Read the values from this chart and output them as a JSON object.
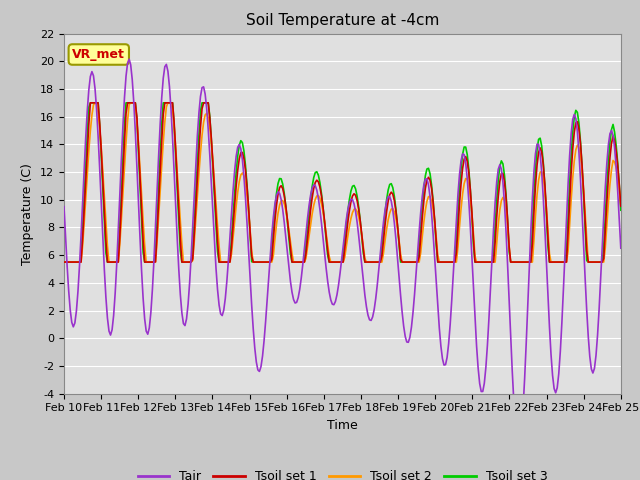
{
  "title": "Soil Temperature at -4cm",
  "xlabel": "Time",
  "ylabel": "Temperature (C)",
  "ylim": [
    -4,
    22
  ],
  "yticks": [
    -4,
    -2,
    0,
    2,
    4,
    6,
    8,
    10,
    12,
    14,
    16,
    18,
    20,
    22
  ],
  "date_labels": [
    "Feb 10",
    "Feb 11",
    "Feb 12",
    "Feb 13",
    "Feb 14",
    "Feb 15",
    "Feb 16",
    "Feb 17",
    "Feb 18",
    "Feb 19",
    "Feb 20",
    "Feb 21",
    "Feb 22",
    "Feb 23",
    "Feb 24",
    "Feb 25"
  ],
  "colors": {
    "Tair": "#9933CC",
    "Tsoil set 1": "#CC0000",
    "Tsoil set 2": "#FF9900",
    "Tsoil set 3": "#00CC00"
  },
  "legend_labels": [
    "Tair",
    "Tsoil set 1",
    "Tsoil set 2",
    "Tsoil set 3"
  ],
  "annotation_text": "VR_met",
  "annotation_color": "#CC0000",
  "annotation_bg": "#FFFF99",
  "fig_bg": "#C8C8C8",
  "plot_bg": "#E0E0E0",
  "grid_color": "#FFFFFF",
  "title_fontsize": 11,
  "axis_fontsize": 9,
  "tick_fontsize": 8,
  "legend_fontsize": 9,
  "n_points": 360
}
